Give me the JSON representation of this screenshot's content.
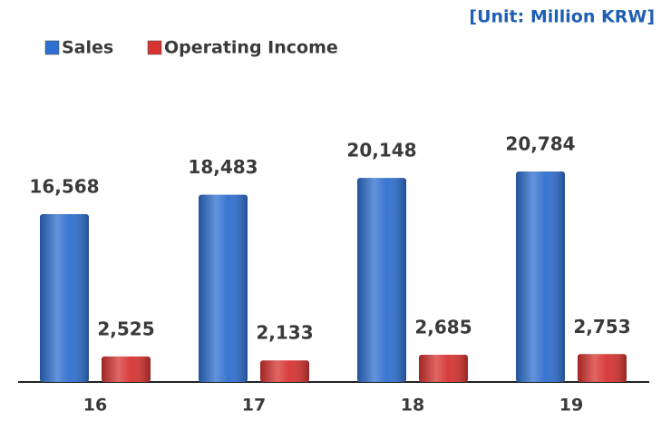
{
  "chart_data": {
    "type": "bar",
    "note_unit": "[Unit: Million KRW]",
    "categories": [
      "16",
      "17",
      "18",
      "19"
    ],
    "series": [
      {
        "name": "Sales",
        "color": "#2f6fcf",
        "values": [
          16568,
          18483,
          20148,
          20784
        ],
        "value_labels": [
          "16,568",
          "18,483",
          "20,148",
          "20,784"
        ]
      },
      {
        "name": "Operating Income",
        "color": "#d63331",
        "values": [
          2525,
          2133,
          2685,
          2753
        ],
        "value_labels": [
          "2,525",
          "2,133",
          "2,685",
          "2,753"
        ]
      }
    ],
    "legend": "top-left"
  }
}
